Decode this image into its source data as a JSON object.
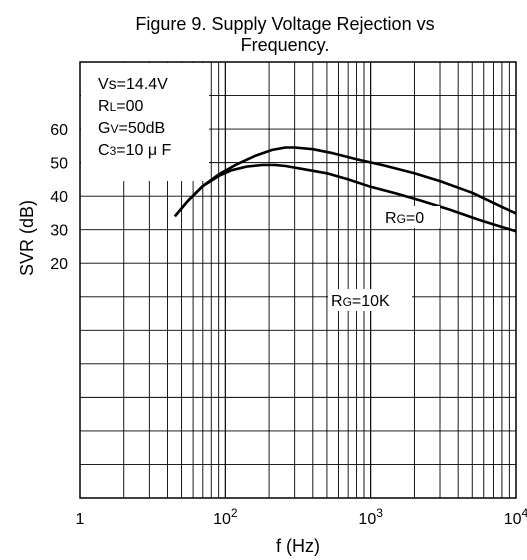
{
  "chart_data": {
    "type": "line",
    "title_line1": "Figure 9. Supply Voltage Rejection vs",
    "title_line2": "Frequency.",
    "xlabel": "f (Hz)",
    "ylabel": "SVR (dB)",
    "xscale": "log",
    "xlim": [
      10,
      10000
    ],
    "ylim": [
      -50,
      80
    ],
    "grid": true,
    "x_ticks": [
      {
        "value": 10,
        "base": "1",
        "exp": ""
      },
      {
        "value": 100,
        "base": "10",
        "exp": "2"
      },
      {
        "value": 1000,
        "base": "10",
        "exp": "3"
      },
      {
        "value": 10000,
        "base": "10",
        "exp": "4"
      }
    ],
    "y_ticks": [
      {
        "value": 60,
        "label": "60"
      },
      {
        "value": 50,
        "label": "50"
      },
      {
        "value": 40,
        "label": "40"
      },
      {
        "value": 30,
        "label": "30"
      },
      {
        "value": 20,
        "label": "20"
      }
    ],
    "conditions": [
      {
        "main": "Vs",
        "sub": "",
        "rest": "=14.4V"
      },
      {
        "main": "R",
        "sub": "L",
        "rest": "=00"
      },
      {
        "main": "G",
        "sub": "V",
        "rest": "=50dB"
      },
      {
        "main": "C",
        "sub": "3",
        "rest": "=10 μ F"
      }
    ],
    "series": [
      {
        "name": "RG=0",
        "label_main": "R",
        "label_sub": "G",
        "label_rest": "=0",
        "x": [
          45,
          55,
          70,
          90,
          120,
          160,
          210,
          260,
          300,
          400,
          550,
          800,
          1200,
          2000,
          3000,
          5000,
          8000,
          11000
        ],
        "y": [
          34,
          38.5,
          43,
          46.5,
          49.5,
          52,
          53.8,
          54.5,
          54.5,
          54,
          52.8,
          51,
          49.3,
          46.8,
          44.5,
          41,
          36.8,
          34
        ]
      },
      {
        "name": "RG=10K",
        "label_main": "R",
        "label_sub": "G",
        "label_rest": "=10K",
        "x": [
          45,
          55,
          70,
          90,
          110,
          140,
          180,
          220,
          260,
          350,
          500,
          700,
          1000,
          1500,
          2200,
          3500,
          5500,
          8000,
          11000
        ],
        "y": [
          34,
          38.5,
          43,
          46,
          47.7,
          48.8,
          49.3,
          49.3,
          49,
          48,
          46.8,
          45,
          42.8,
          40.8,
          38.7,
          36,
          33,
          30.8,
          29
        ]
      }
    ]
  }
}
